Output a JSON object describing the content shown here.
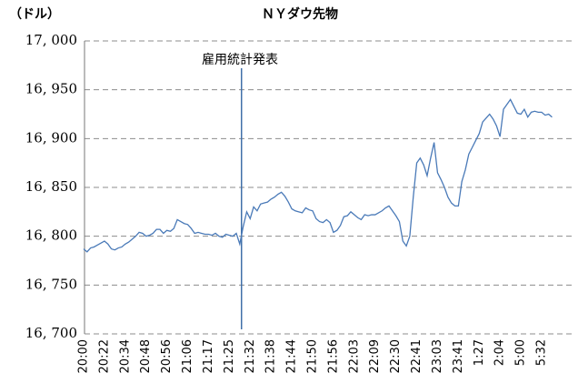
{
  "chart_data": {
    "type": "line",
    "title": "ＮＹダウ先物",
    "y_label": "（ドル）",
    "annotation": "雇用統計発表",
    "color": "#4a7ab8",
    "grid": true,
    "ylim": [
      16700,
      17000
    ],
    "yticks": [
      {
        "value": 16700,
        "label": "16, 700"
      },
      {
        "value": 16750,
        "label": "16, 750"
      },
      {
        "value": 16800,
        "label": "16, 800"
      },
      {
        "value": 16850,
        "label": "16, 850"
      },
      {
        "value": 16900,
        "label": "16, 900"
      },
      {
        "value": 16950,
        "label": "16, 950"
      },
      {
        "value": 17000,
        "label": "17, 000"
      }
    ],
    "categories": [
      "20:00",
      null,
      null,
      null,
      null,
      null,
      "20:22",
      null,
      null,
      null,
      null,
      null,
      "20:34",
      null,
      null,
      null,
      null,
      null,
      "20:48",
      null,
      null,
      null,
      null,
      null,
      "20:56",
      null,
      null,
      null,
      null,
      null,
      "21:06",
      null,
      null,
      null,
      null,
      null,
      "21:17",
      null,
      null,
      null,
      null,
      null,
      "21:25",
      null,
      null,
      null,
      null,
      null,
      "21:32",
      null,
      null,
      null,
      null,
      null,
      "21:38",
      null,
      null,
      null,
      null,
      null,
      "21:44",
      null,
      null,
      null,
      null,
      null,
      "21:50",
      null,
      null,
      null,
      null,
      null,
      "21:56",
      null,
      null,
      null,
      null,
      null,
      "22:03",
      null,
      null,
      null,
      null,
      null,
      "22:09",
      null,
      null,
      null,
      null,
      null,
      "22:30",
      null,
      null,
      null,
      null,
      null,
      "22:41",
      null,
      null,
      null,
      null,
      null,
      "23:03",
      null,
      null,
      null,
      null,
      null,
      "23:41",
      null,
      null,
      null,
      null,
      null,
      "1:27",
      null,
      null,
      null,
      null,
      null,
      "2:04",
      null,
      null,
      null,
      null,
      null,
      "5:00",
      null,
      null,
      null,
      null,
      null,
      "5:32",
      null,
      null,
      null
    ],
    "values": [
      16787,
      16784,
      16788,
      16789,
      16791,
      16793,
      16795,
      16792,
      16787,
      16786,
      16788,
      16789,
      16792,
      16794,
      16797,
      16800,
      16804,
      16803,
      16800,
      16801,
      16803,
      16807,
      16807,
      16803,
      16806,
      16805,
      16808,
      16817,
      16815,
      16813,
      16812,
      16808,
      16803,
      16804,
      16803,
      16802,
      16802,
      16801,
      16803,
      16800,
      16799,
      16802,
      16801,
      16800,
      16803,
      16792,
      16810,
      16825,
      16818,
      16830,
      16826,
      16833,
      16834,
      16835,
      16838,
      16840,
      16843,
      16845,
      16841,
      16835,
      16828,
      16826,
      16825,
      16824,
      16829,
      16827,
      16826,
      16818,
      16815,
      16814,
      16817,
      16814,
      16804,
      16806,
      16811,
      16820,
      16821,
      16825,
      16822,
      16819,
      16817,
      16822,
      16821,
      16822,
      16822,
      16824,
      16826,
      16829,
      16831,
      16826,
      16821,
      16815,
      16795,
      16790,
      16800,
      16840,
      16875,
      16880,
      16873,
      16862,
      16880,
      16896,
      16865,
      16858,
      16850,
      16840,
      16834,
      16831,
      16831,
      16856,
      16868,
      16884,
      16891,
      16898,
      16905,
      16917,
      16921,
      16925,
      16920,
      16913,
      16902,
      16930,
      16935,
      16940,
      16933,
      16926,
      16925,
      16930,
      16922,
      16927,
      16928,
      16927,
      16927,
      16924,
      16925,
      16922
    ]
  }
}
